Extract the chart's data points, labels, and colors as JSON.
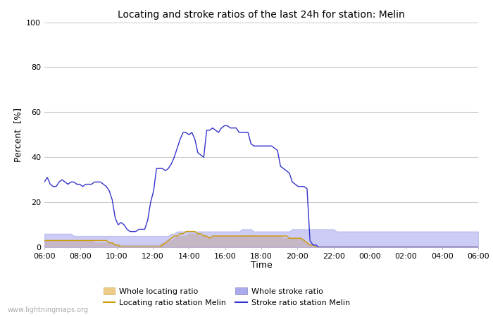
{
  "title": "Locating and stroke ratios of the last 24h for station: Melin",
  "ylabel": "Percent  [%]",
  "xlabel": "Time",
  "watermark": "www.lightningmaps.org",
  "ylim": [
    0,
    100
  ],
  "yticks": [
    0,
    20,
    40,
    60,
    80,
    100
  ],
  "xtick_labels": [
    "06:00",
    "08:00",
    "10:00",
    "12:00",
    "14:00",
    "16:00",
    "18:00",
    "20:00",
    "22:00",
    "00:00",
    "02:00",
    "04:00",
    "06:00"
  ],
  "stroke_ratio_station": [
    29,
    31,
    28,
    27,
    27,
    29,
    30,
    29,
    28,
    29,
    29,
    28,
    28,
    27,
    28,
    28,
    28,
    29,
    29,
    29,
    28,
    27,
    25,
    21,
    13,
    10,
    11,
    10,
    8,
    7,
    7,
    7,
    8,
    8,
    8,
    12,
    20,
    25,
    35,
    35,
    35,
    34,
    35,
    37,
    40,
    44,
    48,
    51,
    51,
    50,
    51,
    48,
    42,
    41,
    40,
    52,
    52,
    53,
    52,
    51,
    53,
    54,
    54,
    53,
    53,
    53,
    51,
    51,
    51,
    51,
    46,
    45,
    45,
    45,
    45,
    45,
    45,
    45,
    44,
    43,
    36,
    35,
    34,
    33,
    29,
    28,
    27,
    27,
    27,
    26,
    3,
    1,
    1,
    0,
    0,
    0,
    0,
    0,
    0,
    0,
    0,
    0,
    0,
    0,
    0,
    0,
    0,
    0,
    0,
    0,
    0,
    0,
    0,
    0,
    0,
    0,
    0,
    0,
    0,
    0,
    0,
    0,
    0,
    0,
    0,
    0,
    0,
    0,
    0,
    0,
    0,
    0,
    0,
    0,
    0,
    0,
    0,
    0,
    0,
    0,
    0,
    0,
    0,
    0,
    0,
    0,
    0,
    0
  ],
  "whole_stroke_ratio": [
    6,
    6,
    6,
    6,
    6,
    6,
    6,
    6,
    6,
    6,
    5,
    5,
    5,
    5,
    5,
    5,
    5,
    5,
    5,
    5,
    5,
    5,
    5,
    5,
    5,
    5,
    5,
    5,
    5,
    5,
    5,
    5,
    5,
    5,
    5,
    5,
    5,
    5,
    5,
    5,
    5,
    5,
    5,
    6,
    6,
    7,
    7,
    7,
    7,
    7,
    7,
    7,
    7,
    7,
    7,
    7,
    7,
    7,
    7,
    7,
    7,
    7,
    7,
    7,
    7,
    7,
    7,
    8,
    8,
    8,
    8,
    7,
    7,
    7,
    7,
    7,
    7,
    7,
    7,
    7,
    7,
    7,
    7,
    7,
    8,
    8,
    8,
    8,
    8,
    8,
    8,
    8,
    8,
    8,
    8,
    8,
    8,
    8,
    8,
    7,
    7,
    7,
    7,
    7,
    7,
    7,
    7,
    7,
    7,
    7,
    7,
    7,
    7,
    7,
    7,
    7,
    7,
    7,
    7,
    7,
    7,
    7,
    7,
    7,
    7,
    7,
    7,
    7,
    7,
    7,
    7,
    7,
    7,
    7,
    7,
    7,
    7,
    7,
    7,
    7,
    7,
    7,
    7,
    7,
    7,
    7,
    7,
    7
  ],
  "locating_ratio_station": [
    3,
    3,
    3,
    3,
    3,
    3,
    3,
    3,
    3,
    3,
    3,
    3,
    3,
    3,
    3,
    3,
    3,
    3,
    3,
    3,
    3,
    3,
    2,
    2,
    1,
    1,
    0,
    0,
    0,
    0,
    0,
    0,
    0,
    0,
    0,
    0,
    0,
    0,
    0,
    0,
    1,
    2,
    3,
    4,
    5,
    5,
    6,
    6,
    7,
    7,
    7,
    7,
    6,
    6,
    5,
    5,
    4,
    5,
    5,
    5,
    5,
    5,
    5,
    5,
    5,
    5,
    5,
    5,
    5,
    5,
    5,
    5,
    5,
    5,
    5,
    5,
    5,
    5,
    5,
    5,
    5,
    5,
    5,
    4,
    4,
    4,
    4,
    4,
    3,
    2,
    1,
    1,
    0,
    0,
    0,
    0,
    0,
    0,
    0,
    0,
    0,
    0,
    0,
    0,
    0,
    0,
    0,
    0,
    0,
    0,
    0,
    0,
    0,
    0,
    0,
    0,
    0,
    0,
    0,
    0,
    0,
    0,
    0,
    0,
    0,
    0,
    0,
    0,
    0,
    0,
    0,
    0,
    0,
    0,
    0,
    0,
    0,
    0,
    0,
    0,
    0,
    0,
    0,
    0,
    0,
    0,
    0,
    0
  ],
  "whole_locating_ratio": [
    3,
    3,
    3,
    3,
    3,
    3,
    3,
    3,
    3,
    3,
    3,
    3,
    3,
    3,
    3,
    3,
    3,
    2,
    2,
    2,
    2,
    2,
    2,
    2,
    1,
    1,
    1,
    1,
    1,
    1,
    1,
    1,
    1,
    1,
    1,
    1,
    1,
    1,
    1,
    1,
    2,
    2,
    3,
    3,
    4,
    5,
    5,
    5,
    5,
    6,
    6,
    6,
    6,
    5,
    5,
    5,
    4,
    5,
    5,
    5,
    5,
    5,
    5,
    5,
    5,
    5,
    5,
    5,
    5,
    5,
    5,
    5,
    5,
    5,
    5,
    5,
    5,
    5,
    5,
    5,
    5,
    4,
    4,
    4,
    4,
    4,
    4,
    4,
    3,
    2,
    1,
    0,
    0,
    0,
    0,
    0,
    0,
    0,
    0,
    0,
    0,
    0,
    0,
    0,
    0,
    0,
    0,
    0,
    0,
    0,
    0,
    0,
    0,
    0,
    0,
    0,
    0,
    0,
    0,
    0,
    0,
    0,
    0,
    0,
    0,
    0,
    0,
    0,
    0,
    0,
    0,
    0,
    0,
    0,
    0,
    0,
    0,
    0,
    0,
    0,
    0,
    0,
    0,
    0,
    0,
    0,
    0,
    0
  ],
  "color_stroke_station": "#3333cc",
  "color_whole_stroke": "#aaaaee",
  "color_locating_station": "#cc9900",
  "color_whole_locating": "#eecc88",
  "bg_color": "#ffffff",
  "grid_color": "#cccccc",
  "title_fontsize": 10,
  "tick_fontsize": 8,
  "label_fontsize": 9
}
